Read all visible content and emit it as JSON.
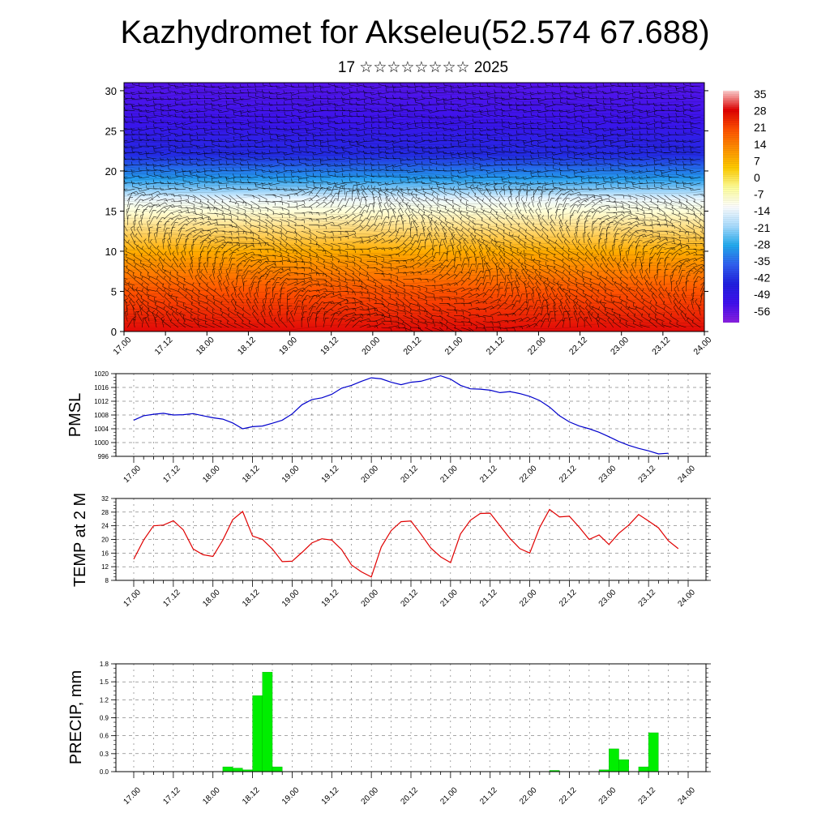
{
  "title": "Kazhydromet for Akseleu(52.574 67.688)",
  "subtitle": "17 ☆☆☆☆☆☆☆☆ 2025",
  "colors": {
    "pmsl_line": "#0000cc",
    "temp_line": "#e00000",
    "precip_bar": "#00ee00",
    "precip_edge": "#00aa00",
    "wind_barb": "#000000"
  },
  "chart_data": [
    {
      "type": "heatmap",
      "name": "temperature-cross-section",
      "x_ticks": [
        "17.00",
        "17.12",
        "18.00",
        "18.12",
        "19.00",
        "19.12",
        "20.00",
        "20.12",
        "21.00",
        "21.12",
        "22.00",
        "22.12",
        "23.00",
        "23.12",
        "24.00"
      ],
      "xlim": [
        0,
        168
      ],
      "y_ticks": [
        0,
        5,
        10,
        15,
        20,
        25,
        30
      ],
      "ylim": [
        0,
        31
      ],
      "colorbar": {
        "labels": [
          "35",
          "28",
          "21",
          "14",
          "7",
          "0",
          "-7",
          "-14",
          "-21",
          "-28",
          "-35",
          "-42",
          "-49",
          "-56"
        ],
        "stops": [
          "#ffd0d0",
          "#e00000",
          "#ff5000",
          "#ff9000",
          "#ffcc00",
          "#ffff99",
          "#ffffff",
          "#aaddff",
          "#22aaee",
          "#3060f0",
          "#2020e0",
          "#4010ee",
          "#8a20e0"
        ]
      },
      "layer_temperature_profile": [
        {
          "height": 0,
          "value": 30
        },
        {
          "height": 5,
          "value": 21
        },
        {
          "height": 10,
          "value": 9
        },
        {
          "height": 15,
          "value": -9
        },
        {
          "height": 16.5,
          "value": -14
        },
        {
          "height": 19,
          "value": -30
        },
        {
          "height": 22,
          "value": -44
        },
        {
          "height": 26,
          "value": -52
        },
        {
          "height": 31,
          "value": -56
        }
      ],
      "overlay": "wind barbs"
    },
    {
      "type": "line",
      "name": "pmsl",
      "ylabel": "PMSL",
      "ylim": [
        996,
        1020
      ],
      "y_ticks": [
        996,
        1000,
        1004,
        1008,
        1012,
        1016,
        1020
      ],
      "x_ticks": [
        "17.00",
        "17.12",
        "18.00",
        "18.12",
        "19.00",
        "19.12",
        "20.00",
        "20.12",
        "21.00",
        "21.12",
        "22.00",
        "22.12",
        "23.00",
        "23.12",
        "24.00"
      ],
      "xlim": [
        0,
        168
      ],
      "x": [
        0,
        3,
        6,
        9,
        12,
        15,
        18,
        21,
        24,
        27,
        30,
        33,
        36,
        39,
        42,
        45,
        48,
        51,
        54,
        57,
        60,
        63,
        66,
        69,
        72,
        75,
        78,
        81,
        84,
        87,
        90,
        93,
        96,
        99,
        102,
        105,
        108,
        111,
        114,
        117,
        120,
        123,
        126,
        129,
        132,
        135,
        138,
        141,
        144,
        147,
        150,
        153,
        156,
        159,
        162,
        165,
        168
      ],
      "values": [
        1006.5,
        1007.8,
        1008.2,
        1008.5,
        1008.0,
        1008.1,
        1008.4,
        1007.8,
        1007.2,
        1006.8,
        1005.7,
        1004.0,
        1004.6,
        1004.8,
        1005.6,
        1006.5,
        1008.3,
        1011.0,
        1012.5,
        1013.0,
        1014.0,
        1015.8,
        1016.6,
        1017.8,
        1018.8,
        1018.5,
        1017.5,
        1016.8,
        1017.5,
        1017.8,
        1018.6,
        1019.4,
        1018.4,
        1016.6,
        1015.6,
        1015.5,
        1015.2,
        1014.5,
        1014.8,
        1014.2,
        1013.4,
        1012.2,
        1010.3,
        1007.8,
        1006.0,
        1004.8,
        1004.0,
        1003.0,
        1001.7,
        1000.3,
        999.2,
        998.3,
        997.6,
        996.7,
        996.9,
        null,
        null
      ]
    },
    {
      "type": "line",
      "name": "temp-2m",
      "ylabel": "TEMP at 2 M",
      "ylim": [
        8,
        32
      ],
      "y_ticks": [
        8,
        12,
        16,
        20,
        24,
        28,
        32
      ],
      "x_ticks": [
        "17.00",
        "17.12",
        "18.00",
        "18.12",
        "19.00",
        "19.12",
        "20.00",
        "20.12",
        "21.00",
        "21.12",
        "22.00",
        "22.12",
        "23.00",
        "23.12",
        "24.00"
      ],
      "xlim": [
        0,
        168
      ],
      "x": [
        0,
        3,
        6,
        9,
        12,
        15,
        18,
        21,
        24,
        27,
        30,
        33,
        36,
        39,
        42,
        45,
        48,
        51,
        54,
        57,
        60,
        63,
        66,
        69,
        72,
        75,
        78,
        81,
        84,
        87,
        90,
        93,
        96,
        99,
        102,
        105,
        108,
        111,
        114,
        117,
        120,
        123,
        126,
        129,
        132,
        135,
        138,
        141,
        144,
        147,
        150,
        153,
        156,
        159,
        162,
        165
      ],
      "values": [
        14.2,
        19.8,
        24.0,
        24.2,
        25.5,
        22.8,
        17.2,
        15.5,
        15.0,
        19.8,
        25.8,
        28.2,
        21.0,
        20.0,
        17.2,
        13.5,
        13.6,
        16.2,
        19.0,
        20.2,
        19.8,
        17.0,
        12.5,
        10.5,
        9.0,
        17.8,
        22.6,
        25.2,
        25.4,
        21.6,
        17.5,
        14.9,
        13.2,
        21.6,
        25.6,
        27.6,
        27.7,
        24.0,
        20.3,
        17.3,
        16.0,
        23.5,
        28.8,
        26.6,
        26.8,
        23.6,
        20.0,
        21.3,
        18.5,
        21.8,
        24.2,
        27.3,
        25.4,
        23.4,
        19.6,
        17.3
      ]
    },
    {
      "type": "bar",
      "name": "precip",
      "ylabel": "PRECIP, mm",
      "ylim": [
        0,
        1.8
      ],
      "y_ticks": [
        "0.0",
        "0.3",
        "0.6",
        "0.9",
        "1.2",
        "1.5",
        "1.8"
      ],
      "x_ticks": [
        "17.00",
        "17.12",
        "18.00",
        "18.12",
        "19.00",
        "19.12",
        "20.00",
        "20.12",
        "21.00",
        "21.12",
        "22.00",
        "22.12",
        "23.00",
        "23.12",
        "24.00"
      ],
      "xlim": [
        0,
        168
      ],
      "bar_width_hours": 3,
      "x": [
        27,
        30,
        33,
        36,
        39,
        42,
        126,
        141,
        144,
        147,
        153,
        156
      ],
      "values": [
        0.08,
        0.06,
        0.03,
        1.27,
        1.66,
        0.08,
        0.02,
        0.03,
        0.38,
        0.2,
        0.08,
        0.65
      ]
    }
  ]
}
